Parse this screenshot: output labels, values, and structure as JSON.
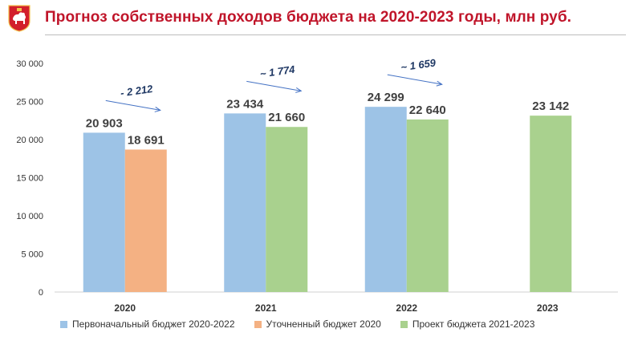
{
  "header": {
    "title": "Прогноз собственных доходов бюджета на 2020-2023 годы, млн руб.",
    "logo": "perm-krai-coat-of-arms-icon"
  },
  "chart_data": {
    "type": "bar",
    "title": "Прогноз собственных доходов бюджета на 2020-2023 годы, млн руб.",
    "xlabel": "",
    "ylabel": "",
    "ylim": [
      0,
      30000
    ],
    "yticks": [
      0,
      5000,
      10000,
      15000,
      20000,
      25000,
      30000
    ],
    "ytick_labels": [
      "0",
      "5 000",
      "10 000",
      "15 000",
      "20 000",
      "25 000",
      "30 000"
    ],
    "grid": false,
    "legend_position": "bottom",
    "categories": [
      "2020",
      "2021",
      "2022",
      "2023"
    ],
    "series": [
      {
        "name": "Первоначальный бюджет 2020-2022",
        "color": "#9dc3e6",
        "values": [
          20903,
          23434,
          24299,
          null
        ],
        "labels": [
          "20 903",
          "23 434",
          "24 299",
          ""
        ]
      },
      {
        "name": "Уточненный бюджет 2020",
        "color": "#f4b183",
        "values": [
          18691,
          null,
          null,
          null
        ],
        "labels": [
          "18 691",
          "",
          "",
          ""
        ]
      },
      {
        "name": "Проект бюджета 2021-2023",
        "color": "#a9d18e",
        "values": [
          null,
          21660,
          22640,
          23142
        ],
        "labels": [
          "",
          "21 660",
          "22 640",
          "23 142"
        ]
      }
    ],
    "annotations": [
      {
        "category": "2020",
        "text": "- 2 212",
        "value": -2212
      },
      {
        "category": "2021",
        "text": "~ 1 774",
        "value": -1774
      },
      {
        "category": "2022",
        "text": "~ 1 659",
        "value": -1659
      }
    ],
    "colors": {
      "annotation": "#1f3864",
      "arrow": "#4472c4",
      "axis_text": "#333333",
      "label_text": "#404040"
    }
  }
}
